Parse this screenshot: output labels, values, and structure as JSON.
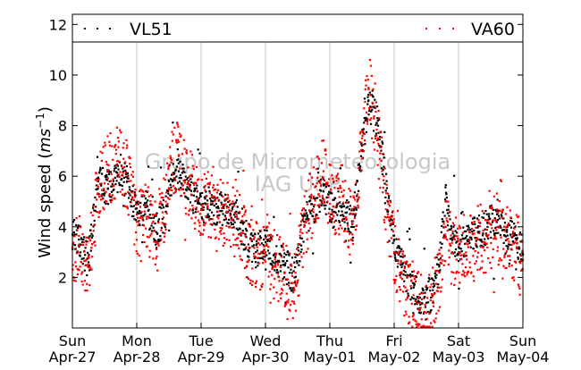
{
  "chart_data": {
    "type": "scatter",
    "title": "",
    "ylabel": "Wind speed",
    "ylabel_unit_base": "ms",
    "ylabel_unit_exp": "−1",
    "ylim": [
      0,
      12.4
    ],
    "yticks": [
      2,
      4,
      6,
      8,
      10,
      12
    ],
    "grid": {
      "x": true,
      "y": false
    },
    "x_domain_days": [
      0,
      7
    ],
    "xticks": [
      {
        "day": 0,
        "label1": "Sun",
        "label2": "Apr-27"
      },
      {
        "day": 1,
        "label1": "Mon",
        "label2": "Apr-28"
      },
      {
        "day": 2,
        "label1": "Tue",
        "label2": "Apr-29"
      },
      {
        "day": 3,
        "label1": "Wed",
        "label2": "Apr-30"
      },
      {
        "day": 4,
        "label1": "Thu",
        "label2": "May-01"
      },
      {
        "day": 5,
        "label1": "Fri",
        "label2": "May-02"
      },
      {
        "day": 6,
        "label1": "Sat",
        "label2": "May-03"
      },
      {
        "day": 7,
        "label1": "Sun",
        "label2": "May-04"
      }
    ],
    "watermark": [
      "Grupo de Micrometeorologia",
      "IAG USP"
    ],
    "legend_position": "top",
    "series": [
      {
        "name": "VL51",
        "color": "#000000",
        "x": [
          0,
          0.1,
          0.25,
          0.4,
          0.55,
          0.7,
          0.85,
          1.0,
          1.15,
          1.3,
          1.45,
          1.5,
          1.65,
          1.8,
          1.95,
          2.1,
          2.25,
          2.4,
          2.55,
          2.7,
          2.85,
          3.0,
          3.15,
          3.3,
          3.45,
          3.6,
          3.75,
          3.9,
          4.05,
          4.2,
          4.35,
          4.5,
          4.6,
          4.75,
          4.9,
          5.0,
          5.1,
          5.2,
          5.3,
          5.4,
          5.5,
          5.6,
          5.7,
          5.8,
          5.9,
          6.0,
          6.15,
          6.3,
          6.45,
          6.6,
          6.75,
          6.9,
          7.0
        ],
        "y": [
          3.7,
          3.5,
          2.6,
          5.8,
          5.5,
          6.0,
          5.8,
          4.5,
          4.8,
          3.8,
          4.6,
          5.8,
          6.2,
          5.5,
          5.0,
          4.8,
          4.6,
          4.8,
          4.4,
          3.6,
          3.0,
          3.4,
          2.8,
          2.5,
          2.0,
          4.2,
          4.8,
          5.4,
          4.6,
          4.8,
          4.0,
          7.0,
          9.0,
          8.0,
          5.0,
          3.5,
          2.5,
          2.0,
          1.6,
          1.2,
          1.0,
          1.5,
          2.5,
          5.0,
          3.5,
          3.2,
          3.5,
          3.8,
          4.0,
          4.5,
          3.8,
          3.5,
          2.9
        ]
      },
      {
        "name": "VA60",
        "color": "#ff0000",
        "x": [
          0,
          0.1,
          0.25,
          0.4,
          0.55,
          0.7,
          0.85,
          1.0,
          1.15,
          1.3,
          1.45,
          1.5,
          1.65,
          1.8,
          1.95,
          2.1,
          2.25,
          2.4,
          2.55,
          2.7,
          2.85,
          3.0,
          3.15,
          3.3,
          3.45,
          3.6,
          3.75,
          3.9,
          4.05,
          4.2,
          4.35,
          4.5,
          4.6,
          4.75,
          4.9,
          5.0,
          5.1,
          5.2,
          5.3,
          5.4,
          5.5,
          5.6,
          5.7,
          5.8,
          5.9,
          6.0,
          6.15,
          6.3,
          6.45,
          6.6,
          6.75,
          6.9,
          7.0
        ],
        "y": [
          3.2,
          3.3,
          2.4,
          5.6,
          6.2,
          6.6,
          6.0,
          4.2,
          4.4,
          3.4,
          5.0,
          6.4,
          6.8,
          5.8,
          5.1,
          4.9,
          4.4,
          4.6,
          4.5,
          3.2,
          2.8,
          3.0,
          2.5,
          2.2,
          1.5,
          4.0,
          5.2,
          6.2,
          4.8,
          5.2,
          3.7,
          7.5,
          9.5,
          7.5,
          4.5,
          3.0,
          2.0,
          1.5,
          1.3,
          0.8,
          0.6,
          1.0,
          2.2,
          4.0,
          3.0,
          3.0,
          3.2,
          3.5,
          3.6,
          4.0,
          3.5,
          3.2,
          2.7
        ]
      }
    ]
  }
}
